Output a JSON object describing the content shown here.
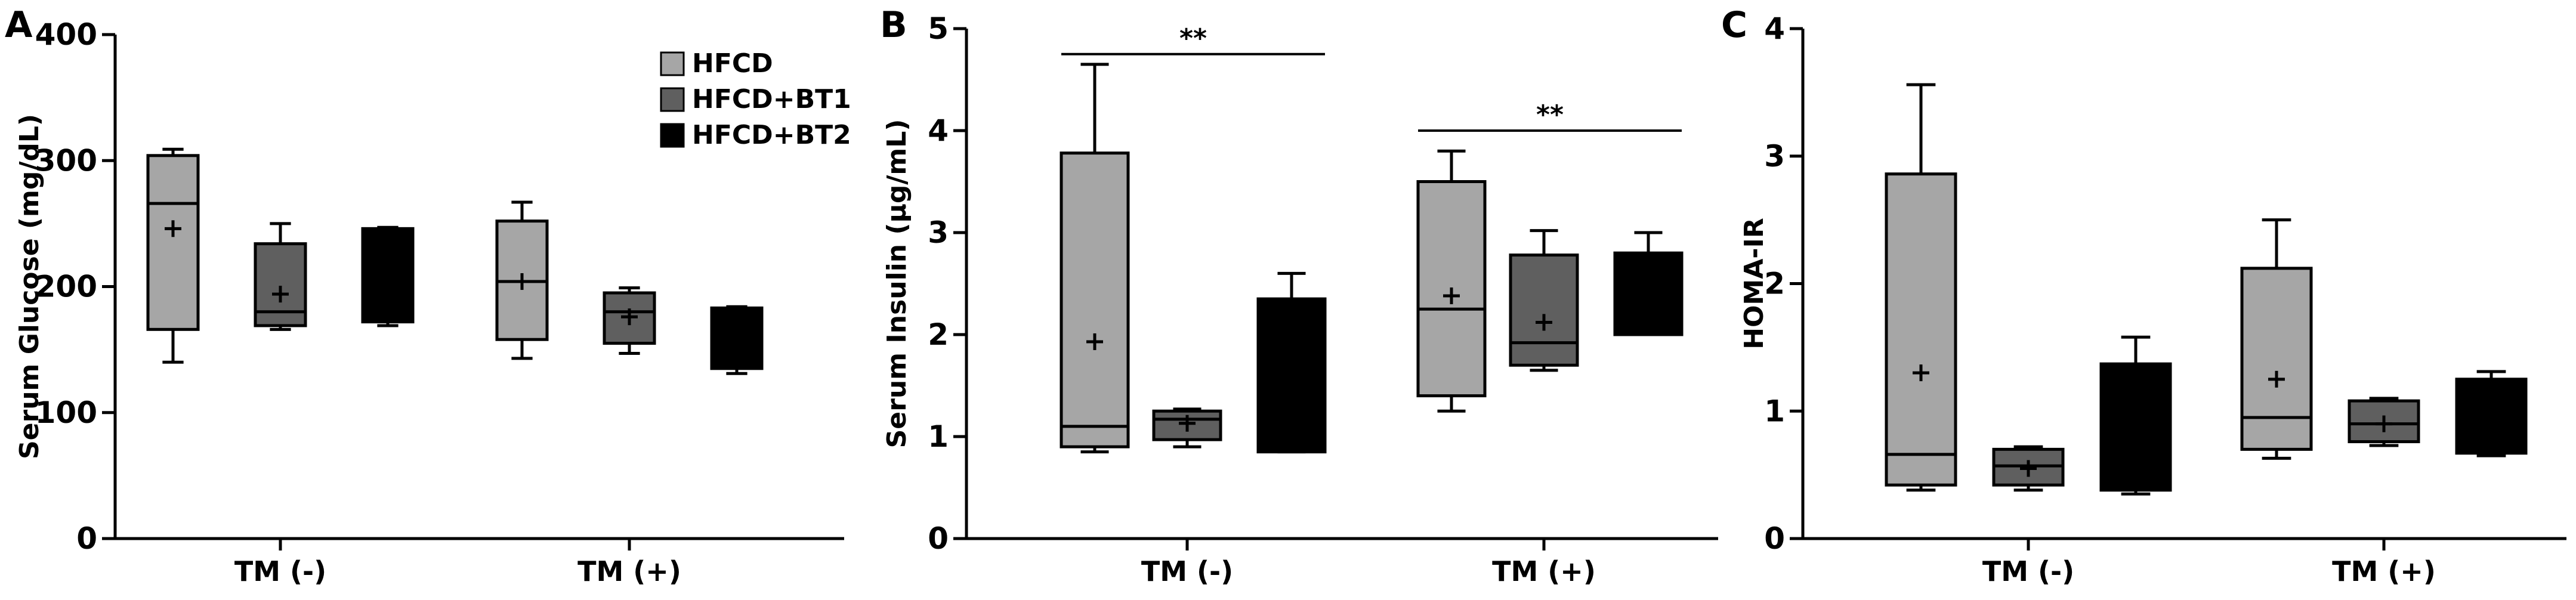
{
  "chart_data": [
    {
      "type": "box",
      "panel_label": "A",
      "ylabel": "Serum Glucose (mg/dL)",
      "ylim": [
        0,
        400
      ],
      "yticks": [
        "0",
        "100",
        "200",
        "300",
        "400"
      ],
      "categories": [
        "TM (-)",
        "TM (+)"
      ],
      "legend": {
        "placement": "top-right",
        "entries": [
          {
            "name": "HFCD",
            "color": "#a6a6a6"
          },
          {
            "name": "HFCD+BT1",
            "color": "#5f5f5f"
          },
          {
            "name": "HFCD+BT2",
            "color": "#000000"
          }
        ]
      },
      "series": [
        {
          "name": "HFCD",
          "color": "#a6a6a6",
          "values": [
            {
              "min": 140,
              "q1": 166,
              "median": 266,
              "q3": 304,
              "max": 309,
              "mean": 246
            },
            {
              "min": 143,
              "q1": 158,
              "median": 204,
              "q3": 252,
              "max": 267,
              "mean": 204
            }
          ]
        },
        {
          "name": "HFCD+BT1",
          "color": "#5f5f5f",
          "values": [
            {
              "min": 166,
              "q1": 169,
              "median": 180,
              "q3": 234,
              "max": 250,
              "mean": 194
            },
            {
              "min": 147,
              "q1": 155,
              "median": 180,
              "q3": 195,
              "max": 199,
              "mean": 176
            }
          ]
        },
        {
          "name": "HFCD+BT2",
          "color": "#000000",
          "values": [
            {
              "min": 169,
              "q1": 172,
              "median": 200,
              "q3": 246,
              "max": 247,
              "mean": 210
            },
            {
              "min": 131,
              "q1": 135,
              "median": 160,
              "q3": 183,
              "max": 184,
              "mean": 160
            }
          ]
        }
      ],
      "significance": []
    },
    {
      "type": "box",
      "panel_label": "B",
      "ylabel": "Serum Insulin (μg/mL)",
      "ylim": [
        0,
        5
      ],
      "yticks": [
        "0",
        "1",
        "2",
        "3",
        "4",
        "5"
      ],
      "categories": [
        "TM (-)",
        "TM (+)"
      ],
      "series": [
        {
          "name": "HFCD",
          "color": "#a6a6a6",
          "values": [
            {
              "min": 0.85,
              "q1": 0.9,
              "median": 1.1,
              "q3": 3.78,
              "max": 4.65,
              "mean": 1.93
            },
            {
              "min": 1.25,
              "q1": 1.4,
              "median": 2.25,
              "q3": 3.5,
              "max": 3.8,
              "mean": 2.38
            }
          ]
        },
        {
          "name": "HFCD+BT1",
          "color": "#5f5f5f",
          "values": [
            {
              "min": 0.9,
              "q1": 0.97,
              "median": 1.17,
              "q3": 1.25,
              "max": 1.27,
              "mean": 1.13
            },
            {
              "min": 1.65,
              "q1": 1.7,
              "median": 1.92,
              "q3": 2.78,
              "max": 3.02,
              "mean": 2.12
            }
          ]
        },
        {
          "name": "HFCD+BT2",
          "color": "#000000",
          "values": [
            {
              "min": 0.85,
              "q1": 0.85,
              "median": 1.5,
              "q3": 2.35,
              "max": 2.6,
              "mean": 1.6
            },
            {
              "min": 2.0,
              "q1": 2.0,
              "median": 2.5,
              "q3": 2.8,
              "max": 3.0,
              "mean": 2.45
            }
          ]
        }
      ],
      "significance": [
        {
          "label": "**",
          "category": 0,
          "y": 4.75
        },
        {
          "label": "**",
          "category": 1,
          "y": 4.0
        }
      ]
    },
    {
      "type": "box",
      "panel_label": "C",
      "ylabel": "HOMA-IR",
      "ylim": [
        0,
        4
      ],
      "yticks": [
        "0",
        "1",
        "2",
        "3",
        "4"
      ],
      "categories": [
        "TM (-)",
        "TM (+)"
      ],
      "series": [
        {
          "name": "HFCD",
          "color": "#a6a6a6",
          "values": [
            {
              "min": 0.38,
              "q1": 0.42,
              "median": 0.66,
              "q3": 2.86,
              "max": 3.56,
              "mean": 1.3
            },
            {
              "min": 0.63,
              "q1": 0.7,
              "median": 0.95,
              "q3": 2.12,
              "max": 2.5,
              "mean": 1.25
            }
          ]
        },
        {
          "name": "HFCD+BT1",
          "color": "#5f5f5f",
          "values": [
            {
              "min": 0.38,
              "q1": 0.42,
              "median": 0.57,
              "q3": 0.7,
              "max": 0.72,
              "mean": 0.55
            },
            {
              "min": 0.73,
              "q1": 0.76,
              "median": 0.9,
              "q3": 1.08,
              "max": 1.1,
              "mean": 0.9
            }
          ]
        },
        {
          "name": "HFCD+BT2",
          "color": "#000000",
          "values": [
            {
              "min": 0.35,
              "q1": 0.38,
              "median": 0.8,
              "q3": 1.37,
              "max": 1.58,
              "mean": 0.9
            },
            {
              "min": 0.65,
              "q1": 0.67,
              "median": 1.0,
              "q3": 1.25,
              "max": 1.31,
              "mean": 0.95
            }
          ]
        }
      ],
      "significance": []
    }
  ]
}
